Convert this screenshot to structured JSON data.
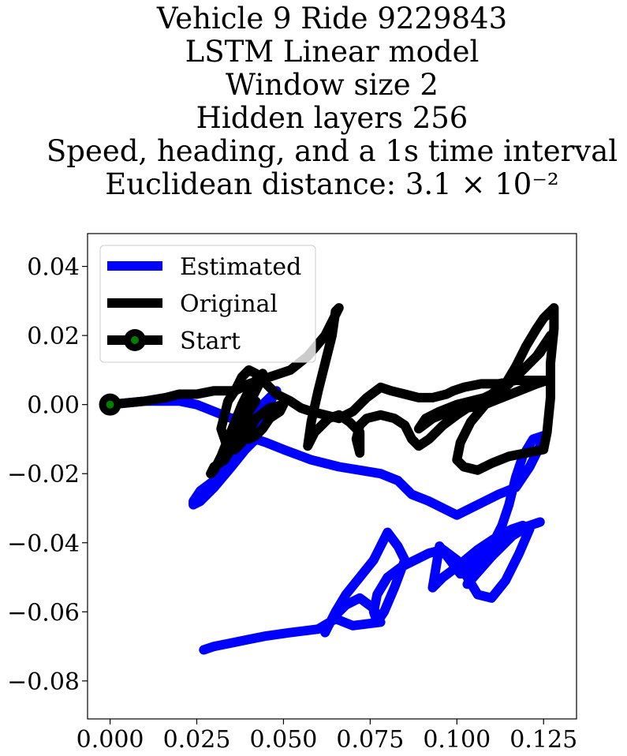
{
  "chart_data": {
    "type": "line",
    "title_lines": [
      "Vehicle 9 Ride 9229843",
      "LSTM Linear model",
      "Window size 2",
      "Hidden layers 256",
      "Speed, heading, and a 1s time interval",
      "Euclidean distance: 3.1 × 10⁻²"
    ],
    "xlabel": "",
    "ylabel": "",
    "xlim": [
      -0.0065,
      0.1345
    ],
    "ylim": [
      -0.091,
      0.0495
    ],
    "xticks": [
      0.0,
      0.025,
      0.05,
      0.075,
      0.1,
      0.125
    ],
    "xtick_labels": [
      "0.000",
      "0.025",
      "0.050",
      "0.075",
      "0.100",
      "0.125"
    ],
    "yticks": [
      0.04,
      0.02,
      0.0,
      -0.02,
      -0.04,
      -0.06,
      -0.08
    ],
    "ytick_labels": [
      "0.04",
      "0.02",
      "0.00",
      "−0.02",
      "−0.04",
      "−0.06",
      "−0.08"
    ],
    "grid": false,
    "legend_position": "upper-left",
    "series": [
      {
        "name": "Estimated",
        "color": "#0000ff",
        "x": [
          0.0,
          0.01,
          0.02,
          0.025,
          0.03,
          0.035,
          0.04,
          0.043,
          0.046,
          0.048,
          0.044,
          0.04,
          0.036,
          0.033,
          0.03,
          0.026,
          0.024,
          0.024,
          0.026,
          0.03,
          0.035,
          0.039,
          0.042,
          0.045,
          0.05,
          0.058,
          0.066,
          0.072,
          0.078,
          0.083,
          0.087,
          0.092,
          0.096,
          0.1,
          0.106,
          0.112,
          0.117,
          0.121,
          0.124,
          0.125,
          0.122,
          0.119,
          0.117,
          0.115,
          0.113,
          0.11,
          0.106,
          0.103,
          0.11,
          0.116,
          0.121,
          0.124,
          0.118,
          0.113,
          0.108,
          0.104,
          0.101,
          0.098,
          0.095,
          0.093,
          0.096,
          0.1,
          0.106,
          0.112,
          0.116,
          0.119,
          0.121,
          0.118,
          0.114,
          0.11,
          0.106,
          0.1,
          0.096,
          0.092,
          0.088,
          0.084,
          0.08,
          0.077,
          0.076,
          0.077,
          0.079,
          0.082,
          0.085,
          0.083,
          0.08,
          0.076,
          0.072,
          0.068,
          0.065,
          0.062,
          0.064,
          0.068,
          0.072,
          0.076,
          0.078,
          0.07,
          0.065,
          0.06,
          0.052,
          0.045,
          0.04,
          0.035,
          0.03,
          0.027
        ],
        "y": [
          0.0,
          0.001,
          0.001,
          0.0,
          -0.002,
          -0.004,
          -0.003,
          -0.001,
          0.002,
          0.004,
          -0.003,
          -0.008,
          -0.013,
          -0.018,
          -0.022,
          -0.025,
          -0.028,
          -0.029,
          -0.028,
          -0.024,
          -0.018,
          -0.013,
          -0.01,
          -0.011,
          -0.013,
          -0.016,
          -0.018,
          -0.019,
          -0.02,
          -0.022,
          -0.026,
          -0.028,
          -0.03,
          -0.032,
          -0.029,
          -0.026,
          -0.024,
          -0.018,
          -0.012,
          -0.009,
          -0.01,
          -0.015,
          -0.021,
          -0.029,
          -0.035,
          -0.041,
          -0.046,
          -0.052,
          -0.044,
          -0.038,
          -0.035,
          -0.034,
          -0.036,
          -0.039,
          -0.042,
          -0.046,
          -0.049,
          -0.045,
          -0.041,
          -0.053,
          -0.05,
          -0.047,
          -0.042,
          -0.038,
          -0.036,
          -0.035,
          -0.036,
          -0.043,
          -0.051,
          -0.056,
          -0.055,
          -0.045,
          -0.042,
          -0.043,
          -0.045,
          -0.047,
          -0.05,
          -0.055,
          -0.06,
          -0.063,
          -0.06,
          -0.053,
          -0.045,
          -0.041,
          -0.037,
          -0.045,
          -0.05,
          -0.055,
          -0.06,
          -0.066,
          -0.062,
          -0.058,
          -0.056,
          -0.059,
          -0.063,
          -0.064,
          -0.062,
          -0.065,
          -0.066,
          -0.067,
          -0.068,
          -0.069,
          -0.07,
          -0.071
        ]
      },
      {
        "name": "Original",
        "color": "#000000",
        "x": [
          0.0,
          0.01,
          0.016,
          0.02,
          0.025,
          0.03,
          0.036,
          0.04,
          0.046,
          0.052,
          0.057,
          0.062,
          0.065,
          0.066,
          0.065,
          0.064,
          0.062,
          0.06,
          0.058,
          0.057,
          0.059,
          0.063,
          0.066,
          0.069,
          0.072,
          0.072,
          0.071,
          0.072,
          0.074,
          0.078,
          0.082,
          0.085,
          0.087,
          0.089,
          0.092,
          0.096,
          0.1,
          0.103,
          0.106,
          0.11,
          0.114,
          0.117,
          0.12,
          0.123,
          0.125,
          0.128,
          0.128,
          0.127,
          0.127,
          0.126,
          0.125,
          0.12,
          0.115,
          0.11,
          0.106,
          0.102,
          0.1,
          0.101,
          0.104,
          0.109,
          0.114,
          0.119,
          0.124,
          0.127,
          0.123,
          0.117,
          0.112,
          0.108,
          0.104,
          0.1,
          0.095,
          0.091,
          0.089,
          0.093,
          0.098,
          0.103,
          0.108,
          0.113,
          0.118,
          0.123,
          0.126,
          0.122,
          0.117,
          0.112,
          0.107,
          0.102,
          0.099,
          0.097,
          0.093,
          0.089,
          0.085,
          0.081,
          0.078,
          0.074,
          0.07,
          0.066,
          0.062,
          0.058,
          0.055,
          0.052,
          0.048,
          0.045,
          0.042,
          0.04,
          0.038,
          0.036,
          0.034,
          0.033,
          0.032,
          0.033,
          0.034,
          0.036,
          0.038,
          0.04,
          0.042,
          0.046,
          0.05,
          0.049,
          0.046,
          0.044,
          0.042,
          0.04,
          0.038,
          0.037,
          0.038,
          0.041,
          0.043,
          0.044,
          0.042,
          0.04,
          0.038,
          0.036,
          0.034,
          0.032,
          0.03,
          0.029,
          0.03,
          0.033,
          0.036,
          0.038,
          0.04,
          0.042
        ],
        "y": [
          0.0,
          0.001,
          0.002,
          0.003,
          0.003,
          0.004,
          0.004,
          0.006,
          0.008,
          0.01,
          0.014,
          0.02,
          0.026,
          0.028,
          0.027,
          0.02,
          0.012,
          0.004,
          -0.005,
          -0.012,
          -0.008,
          -0.004,
          -0.003,
          -0.005,
          -0.008,
          -0.014,
          -0.01,
          -0.006,
          -0.004,
          -0.003,
          -0.004,
          -0.006,
          -0.01,
          -0.012,
          -0.01,
          -0.006,
          -0.003,
          -0.001,
          0.001,
          0.003,
          0.006,
          0.011,
          0.017,
          0.022,
          0.025,
          0.028,
          0.022,
          0.012,
          0.002,
          -0.008,
          -0.013,
          -0.014,
          -0.015,
          -0.017,
          -0.019,
          -0.018,
          -0.016,
          -0.011,
          -0.005,
          0.001,
          0.005,
          0.01,
          0.015,
          0.02,
          0.014,
          0.008,
          0.004,
          0.002,
          0.001,
          0.0,
          -0.002,
          -0.004,
          -0.007,
          -0.004,
          -0.002,
          -0.001,
          0.0,
          0.002,
          0.004,
          0.006,
          0.007,
          0.007,
          0.007,
          0.006,
          0.006,
          0.005,
          0.004,
          0.003,
          0.002,
          0.002,
          0.003,
          0.004,
          0.005,
          0.002,
          -0.002,
          -0.004,
          -0.003,
          -0.002,
          -0.001,
          0.001,
          0.003,
          0.006,
          0.009,
          0.01,
          0.008,
          0.004,
          0.001,
          -0.003,
          -0.007,
          -0.01,
          -0.013,
          -0.013,
          -0.011,
          -0.008,
          -0.004,
          -0.001,
          0.0,
          -0.002,
          -0.004,
          -0.007,
          -0.009,
          -0.01,
          -0.008,
          -0.005,
          -0.002,
          0.002,
          0.006,
          0.009,
          0.007,
          0.004,
          0.0,
          -0.005,
          -0.01,
          -0.015,
          -0.019,
          -0.02,
          -0.018,
          -0.016,
          -0.011,
          -0.006,
          -0.002,
          0.001
        ]
      },
      {
        "name": "Start",
        "color": "#000000",
        "marker_color": "#008000",
        "x": [
          0.0
        ],
        "y": [
          0.0
        ]
      }
    ]
  }
}
